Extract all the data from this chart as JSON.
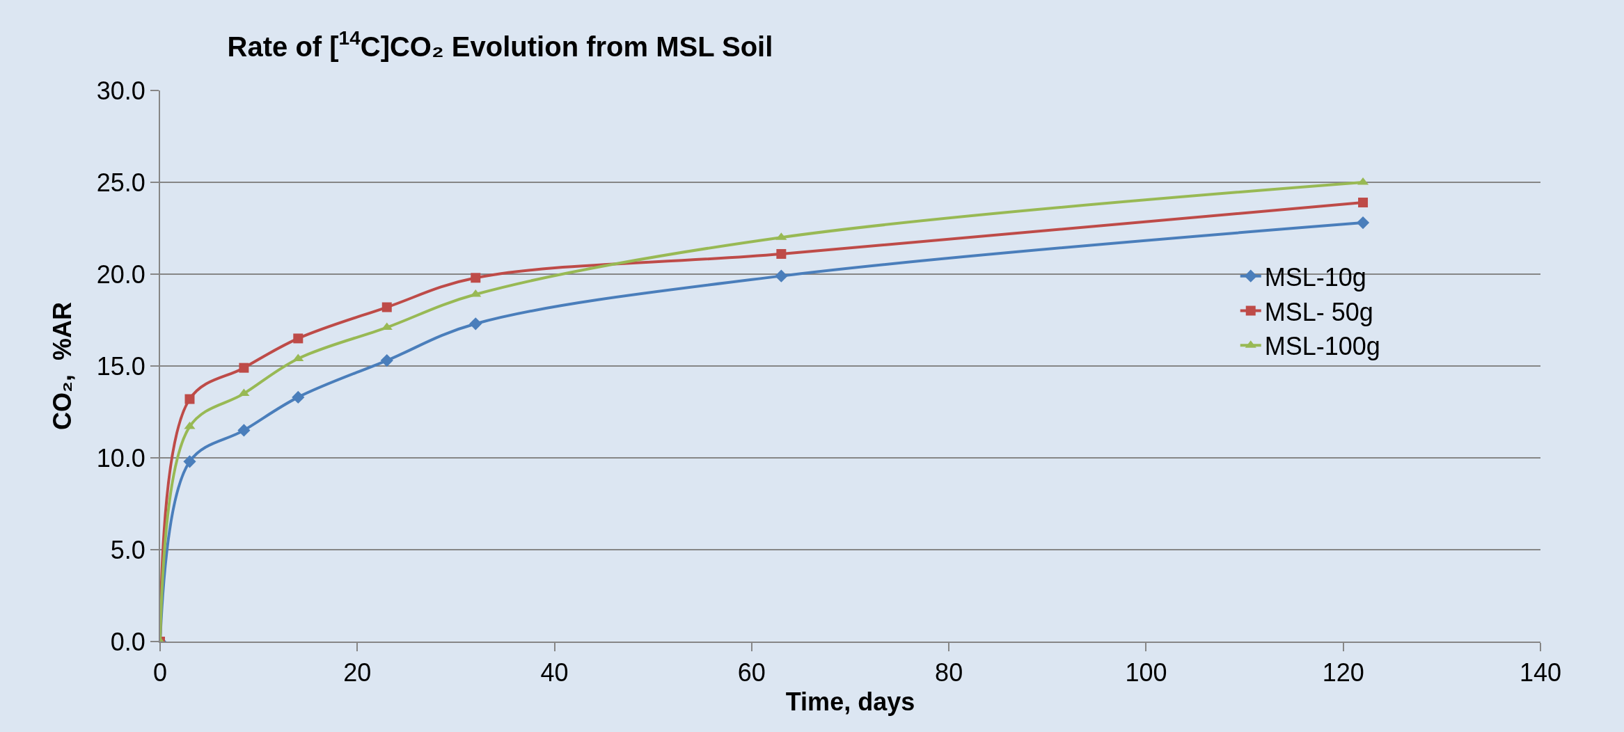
{
  "chart_data": {
    "type": "line",
    "title": "Rate of [$^{14}$C]CO₂ Evolution from MSL Soil",
    "xlabel": "Time, days",
    "ylabel": "CO₂,  %AR",
    "x": [
      0,
      3,
      8.5,
      14,
      23,
      32,
      63,
      122
    ],
    "series": [
      {
        "name": "MSL-10g",
        "color": "#4a7ebb",
        "marker": "diamond",
        "values": [
          0,
          9.8,
          11.5,
          13.3,
          15.3,
          17.3,
          19.9,
          22.8
        ]
      },
      {
        "name": "MSL- 50g",
        "color": "#be4b48",
        "marker": "square",
        "values": [
          0,
          13.2,
          14.9,
          16.5,
          18.2,
          19.8,
          21.1,
          23.9
        ]
      },
      {
        "name": "MSL-100g",
        "color": "#98b954",
        "marker": "triangle",
        "values": [
          0,
          11.7,
          13.5,
          15.4,
          17.1,
          18.9,
          22.0,
          25.0
        ]
      }
    ],
    "xlim": [
      0,
      140
    ],
    "xticks": [
      0,
      20,
      40,
      60,
      80,
      100,
      120,
      140
    ],
    "ylim": [
      0,
      30
    ],
    "yticks": [
      {
        "value": 0,
        "label": "0.0"
      },
      {
        "value": 5,
        "label": "5.0"
      },
      {
        "value": 10,
        "label": "10.0"
      },
      {
        "value": 15,
        "label": "15.0"
      },
      {
        "value": 20,
        "label": "20.0"
      },
      {
        "value": 25,
        "label": "25.0"
      },
      {
        "value": 30,
        "label": "30.0"
      }
    ],
    "grid": "y",
    "legend": "right",
    "line_style": "solid"
  }
}
